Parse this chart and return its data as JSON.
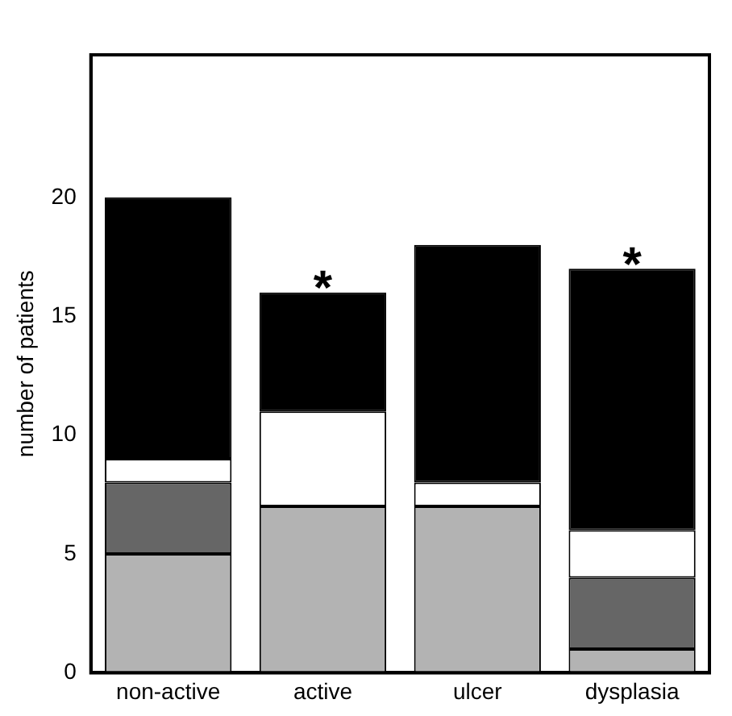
{
  "chart_data": {
    "type": "bar",
    "stacked": true,
    "ylabel": "number of patients",
    "categories": [
      "non-active",
      "active",
      "ulcer",
      "dysplasia"
    ],
    "series": [
      {
        "color": "#b3b3b3",
        "values": [
          5,
          7,
          7,
          1
        ]
      },
      {
        "color": "#666666",
        "values": [
          3,
          0,
          0,
          3
        ]
      },
      {
        "color": "#ffffff",
        "values": [
          1,
          4,
          1,
          2
        ]
      },
      {
        "color": "#000000",
        "values": [
          11,
          5,
          10,
          11
        ]
      }
    ],
    "ylim": [
      0,
      26
    ],
    "yticks": [
      0,
      5,
      10,
      15,
      20
    ],
    "grid": false,
    "legend": false,
    "annotations": [
      {
        "text": "*",
        "x": "active",
        "y": 16
      },
      {
        "text": "*",
        "x": "dysplasia",
        "y": 17
      }
    ]
  }
}
